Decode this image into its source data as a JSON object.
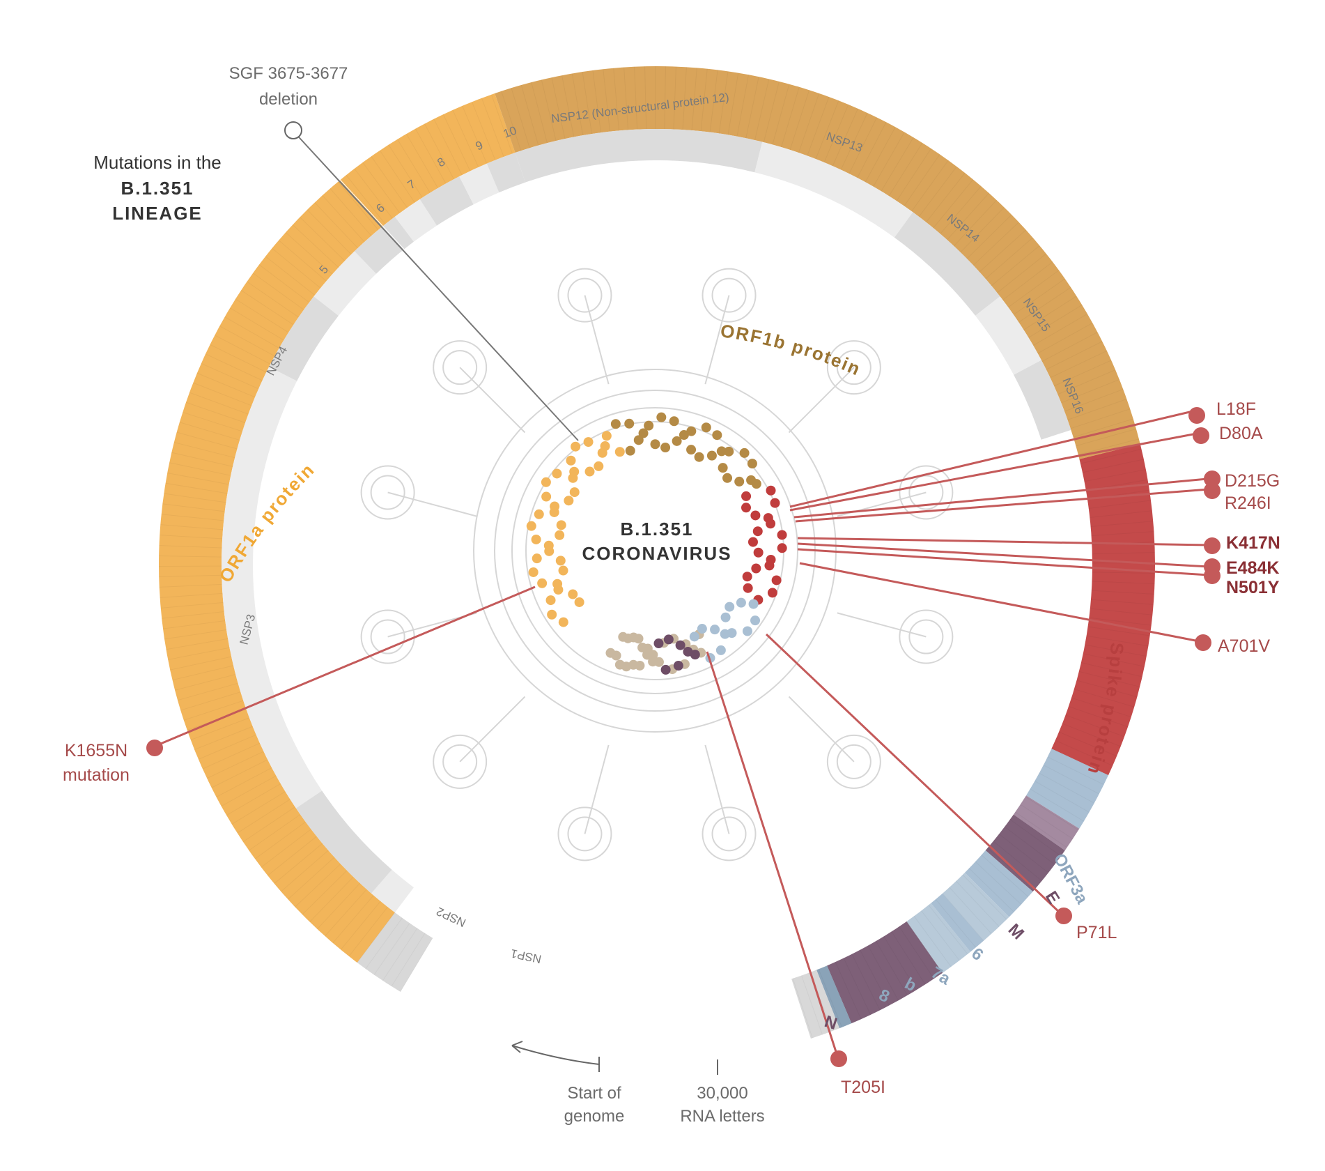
{
  "title": {
    "line1": "Mutations in the",
    "line2": "B.1.351",
    "line3": "LINEAGE"
  },
  "center": {
    "line1": "B.1.351",
    "line2": "CORONAVIRUS"
  },
  "proteins": {
    "orf1a": "ORF1a protein",
    "orf1b": "ORF1b protein",
    "spike": "Spike protein",
    "orf3a": "ORF3a",
    "e": "E",
    "m": "M",
    "six": "6",
    "seven_a": "7a",
    "seven_b": "b",
    "eight": "8",
    "n": "N"
  },
  "nsp_labels": {
    "nsp1": "NSP1",
    "nsp2": "NSP2",
    "nsp3": "NSP3",
    "nsp4": "NSP4",
    "nsp5": "5",
    "nsp6": "6",
    "nsp7": "7",
    "nsp8": "8",
    "nsp9": "9",
    "nsp10": "10",
    "nsp12": "NSP12 (Non-structural protein 12)",
    "nsp13": "NSP13",
    "nsp14": "NSP14",
    "nsp15": "NSP15",
    "nsp16": "NSP16"
  },
  "deletion": {
    "line1": "SGF 3675-3677",
    "line2": "deletion"
  },
  "mutations": {
    "k1655n_line1": "K1655N",
    "k1655n_line2": "mutation",
    "l18f": "L18F",
    "d80a": "D80A",
    "d215g": "D215G",
    "r246i": "R246I",
    "k417n": "K417N",
    "e484k": "E484K",
    "n501y": "N501Y",
    "a701v": "A701V",
    "p71l": "P71L",
    "t205i": "T205I"
  },
  "axis": {
    "start_line1": "Start of",
    "start_line2": "genome",
    "end_line1": "30,000",
    "end_line2": "RNA letters"
  },
  "colors": {
    "orf1a": "#f2b55a",
    "orf1b": "#d9a45a",
    "spike": "#c44a4a",
    "orf3a": "#a9bfd3",
    "e_m_n": "#7e6078",
    "mutation_line": "#c45a5a",
    "nsp_dark": "#dcdcdc",
    "nsp_light": "#ececec"
  }
}
